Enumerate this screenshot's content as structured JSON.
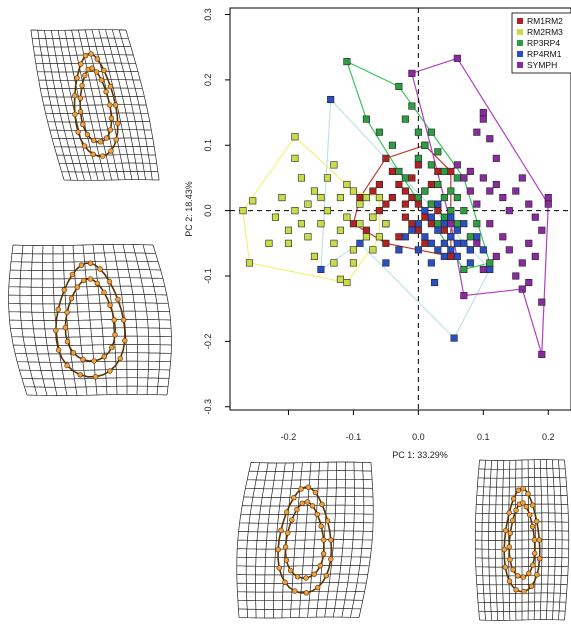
{
  "chart_data": {
    "type": "scatter",
    "xlabel": "PC 1: 33.29%",
    "ylabel": "PC 2: 18.43%",
    "xlim": [
      -0.29,
      0.235
    ],
    "ylim": [
      -0.305,
      0.31
    ],
    "xticks": [
      -0.2,
      -0.1,
      0.0,
      0.1,
      0.2
    ],
    "yticks": [
      -0.3,
      -0.2,
      -0.1,
      0.0,
      0.1,
      0.2,
      0.3
    ],
    "xtick_labels": [
      "-0.2",
      "-0.1",
      "0.0",
      "0.1",
      "0.2"
    ],
    "ytick_labels": [
      "-0.3",
      "-0.2",
      "-0.1",
      "0.0",
      "0.1",
      "0.2",
      "0.3"
    ],
    "reference_lines": {
      "x": 0.0,
      "y": 0.0,
      "style": "dashed"
    },
    "legend_position": "top-right",
    "series": [
      {
        "name": "RM1RM2",
        "color": "#b22222",
        "hull_color": "#c0392b",
        "hull": [
          [
            -0.09,
            0.02
          ],
          [
            -0.05,
            0.08
          ],
          [
            0.01,
            0.1
          ],
          [
            0.05,
            0.06
          ],
          [
            0.05,
            -0.07
          ],
          [
            -0.05,
            -0.05
          ],
          [
            -0.1,
            -0.02
          ]
        ],
        "points": [
          [
            -0.09,
            0.02
          ],
          [
            -0.05,
            0.08
          ],
          [
            0.01,
            0.1
          ],
          [
            0.05,
            0.06
          ],
          [
            0.05,
            -0.07
          ],
          [
            -0.05,
            -0.05
          ],
          [
            -0.1,
            -0.02
          ],
          [
            -0.07,
            0.03
          ],
          [
            -0.06,
            0.0
          ],
          [
            -0.05,
            -0.02
          ],
          [
            -0.04,
            0.02
          ],
          [
            -0.03,
            0.04
          ],
          [
            -0.02,
            -0.01
          ],
          [
            -0.02,
            0.03
          ],
          [
            -0.01,
            0.05
          ],
          [
            0.0,
            0.01
          ],
          [
            0.0,
            -0.03
          ],
          [
            0.01,
            0.03
          ],
          [
            0.02,
            -0.02
          ],
          [
            0.02,
            0.04
          ],
          [
            0.03,
            0.0
          ],
          [
            -0.08,
            -0.03
          ],
          [
            -0.03,
            -0.04
          ],
          [
            0.01,
            -0.05
          ],
          [
            -0.06,
            0.04
          ],
          [
            0.03,
            0.06
          ],
          [
            -0.04,
            0.06
          ],
          [
            0.04,
            -0.03
          ],
          [
            -0.01,
            -0.02
          ],
          [
            0.0,
            0.07
          ],
          [
            -0.07,
            -0.01
          ],
          [
            -0.02,
            0.01
          ],
          [
            0.02,
            0.01
          ],
          [
            -0.05,
            0.01
          ],
          [
            -0.01,
            0.02
          ],
          [
            0.01,
            -0.01
          ]
        ]
      },
      {
        "name": "RM2RM3",
        "color": "#c8dc4a",
        "hull_color": "#f2f27a",
        "hull": [
          [
            -0.19,
            0.113
          ],
          [
            -0.1,
            0.03
          ],
          [
            -0.06,
            0.02
          ],
          [
            -0.06,
            -0.04
          ],
          [
            -0.11,
            -0.11
          ],
          [
            -0.26,
            -0.08
          ],
          [
            -0.27,
            0.0
          ]
        ],
        "points": [
          [
            -0.19,
            0.113
          ],
          [
            -0.1,
            0.03
          ],
          [
            -0.06,
            0.02
          ],
          [
            -0.06,
            -0.04
          ],
          [
            -0.11,
            -0.11
          ],
          [
            -0.26,
            -0.08
          ],
          [
            -0.27,
            0.0
          ],
          [
            -0.255,
            0.015
          ],
          [
            -0.23,
            -0.05
          ],
          [
            -0.22,
            -0.01
          ],
          [
            -0.21,
            0.02
          ],
          [
            -0.2,
            -0.03
          ],
          [
            -0.19,
            0.0
          ],
          [
            -0.18,
            0.05
          ],
          [
            -0.17,
            0.01
          ],
          [
            -0.17,
            -0.04
          ],
          [
            -0.16,
            0.03
          ],
          [
            -0.15,
            -0.02
          ],
          [
            -0.14,
            0.05
          ],
          [
            -0.14,
            0.0
          ],
          [
            -0.13,
            -0.05
          ],
          [
            -0.12,
            0.02
          ],
          [
            -0.12,
            -0.03
          ],
          [
            -0.11,
            0.04
          ],
          [
            -0.11,
            -0.01
          ],
          [
            -0.1,
            -0.06
          ],
          [
            -0.09,
            -0.02
          ],
          [
            -0.09,
            0.01
          ],
          [
            -0.08,
            -0.04
          ],
          [
            -0.08,
            0.02
          ],
          [
            -0.07,
            -0.01
          ],
          [
            -0.16,
            -0.07
          ],
          [
            -0.13,
            -0.08
          ],
          [
            -0.12,
            -0.105
          ],
          [
            -0.2,
            -0.05
          ],
          [
            -0.18,
            -0.02
          ],
          [
            -0.15,
            0.02
          ],
          [
            -0.1,
            -0.08
          ],
          [
            -0.07,
            -0.06
          ],
          [
            -0.19,
            0.08
          ],
          [
            -0.13,
            0.07
          ],
          [
            -0.05,
            -0.02
          ]
        ]
      },
      {
        "name": "RP3RP4",
        "color": "#2e9e44",
        "hull_color": "#3cc458",
        "hull": [
          [
            -0.11,
            0.228
          ],
          [
            -0.08,
            0.14
          ],
          [
            -0.03,
            0.06
          ],
          [
            0.07,
            -0.09
          ],
          [
            0.11,
            -0.08
          ],
          [
            0.07,
            0.05
          ],
          [
            -0.03,
            0.19
          ]
        ],
        "points": [
          [
            -0.11,
            0.228
          ],
          [
            -0.08,
            0.14
          ],
          [
            -0.03,
            0.06
          ],
          [
            0.07,
            -0.09
          ],
          [
            0.11,
            -0.08
          ],
          [
            0.07,
            0.05
          ],
          [
            -0.03,
            0.19
          ],
          [
            -0.02,
            0.14
          ],
          [
            -0.01,
            0.16
          ],
          [
            0.0,
            0.12
          ],
          [
            0.01,
            0.1
          ],
          [
            0.02,
            0.12
          ],
          [
            0.02,
            0.07
          ],
          [
            0.03,
            0.09
          ],
          [
            0.03,
            0.04
          ],
          [
            0.04,
            0.06
          ],
          [
            0.04,
            0.02
          ],
          [
            0.05,
            0.03
          ],
          [
            0.05,
            0.0
          ],
          [
            0.06,
            0.02
          ],
          [
            0.06,
            -0.02
          ],
          [
            0.07,
            0.0
          ],
          [
            0.08,
            -0.04
          ],
          [
            0.08,
            -0.06
          ],
          [
            0.09,
            -0.02
          ],
          [
            -0.02,
            0.05
          ],
          [
            0.0,
            0.08
          ],
          [
            0.01,
            0.03
          ],
          [
            0.02,
            0.01
          ],
          [
            -0.04,
            0.1
          ],
          [
            -0.06,
            0.12
          ],
          [
            0.04,
            -0.01
          ],
          [
            0.06,
            0.05
          ],
          [
            0.03,
            -0.02
          ],
          [
            0.0,
            0.02
          ],
          [
            0.05,
            -0.04
          ]
        ]
      },
      {
        "name": "RP4RM1",
        "color": "#2a4fc4",
        "hull_color": "#bfe3ea",
        "hull": [
          [
            -0.135,
            0.17
          ],
          [
            0.11,
            -0.09
          ],
          [
            0.055,
            -0.195
          ],
          [
            -0.09,
            -0.05
          ],
          [
            -0.15,
            -0.09
          ]
        ],
        "points": [
          [
            -0.135,
            0.17
          ],
          [
            0.11,
            -0.09
          ],
          [
            0.055,
            -0.195
          ],
          [
            -0.09,
            -0.05
          ],
          [
            -0.15,
            -0.09
          ],
          [
            -0.05,
            -0.08
          ],
          [
            0.025,
            -0.11
          ],
          [
            0.0,
            -0.02
          ],
          [
            0.01,
            -0.04
          ],
          [
            0.02,
            -0.01
          ],
          [
            0.02,
            -0.05
          ],
          [
            0.03,
            -0.03
          ],
          [
            0.03,
            -0.06
          ],
          [
            0.04,
            -0.02
          ],
          [
            0.04,
            -0.05
          ],
          [
            0.05,
            -0.01
          ],
          [
            0.05,
            -0.04
          ],
          [
            0.05,
            -0.06
          ],
          [
            0.06,
            -0.03
          ],
          [
            0.06,
            -0.07
          ],
          [
            0.07,
            -0.05
          ],
          [
            0.07,
            -0.02
          ],
          [
            0.08,
            -0.06
          ],
          [
            0.08,
            -0.08
          ],
          [
            0.09,
            -0.04
          ],
          [
            0.1,
            -0.06
          ],
          [
            -0.01,
            -0.03
          ],
          [
            0.0,
            -0.06
          ],
          [
            0.01,
            0.0
          ],
          [
            -0.03,
            -0.06
          ],
          [
            0.03,
            0.01
          ],
          [
            0.06,
            -0.05
          ],
          [
            0.04,
            -0.07
          ],
          [
            0.02,
            -0.08
          ],
          [
            -0.02,
            -0.04
          ]
        ]
      },
      {
        "name": "SYMPH",
        "color": "#8a2aa0",
        "hull_color": "#b040c0",
        "hull": [
          [
            -0.01,
            0.21
          ],
          [
            0.06,
            0.233
          ],
          [
            0.2,
            0.01
          ],
          [
            0.19,
            -0.22
          ],
          [
            0.16,
            -0.12
          ],
          [
            0.07,
            -0.13
          ],
          [
            0.05,
            -0.02
          ]
        ],
        "points": [
          [
            -0.01,
            0.21
          ],
          [
            0.06,
            0.233
          ],
          [
            0.2,
            0.01
          ],
          [
            0.19,
            -0.22
          ],
          [
            0.16,
            -0.12
          ],
          [
            0.07,
            -0.13
          ],
          [
            0.05,
            -0.02
          ],
          [
            0.1,
            0.15
          ],
          [
            0.1,
            0.14
          ],
          [
            0.11,
            0.11
          ],
          [
            0.09,
            0.12
          ],
          [
            0.08,
            0.06
          ],
          [
            0.1,
            0.05
          ],
          [
            0.11,
            0.03
          ],
          [
            0.12,
            0.04
          ],
          [
            0.13,
            0.02
          ],
          [
            0.14,
            0.0
          ],
          [
            0.15,
            0.03
          ],
          [
            0.16,
            0.05
          ],
          [
            0.17,
            0.01
          ],
          [
            0.18,
            -0.01
          ],
          [
            0.19,
            -0.03
          ],
          [
            0.17,
            -0.05
          ],
          [
            0.16,
            -0.08
          ],
          [
            0.18,
            -0.07
          ],
          [
            0.14,
            -0.06
          ],
          [
            0.12,
            -0.07
          ],
          [
            0.13,
            -0.04
          ],
          [
            0.11,
            -0.02
          ],
          [
            0.09,
            -0.05
          ],
          [
            0.1,
            -0.09
          ],
          [
            0.09,
            0.01
          ],
          [
            0.08,
            0.03
          ],
          [
            0.07,
            0.05
          ],
          [
            0.06,
            0.07
          ],
          [
            0.15,
            -0.1
          ],
          [
            0.17,
            -0.11
          ],
          [
            0.19,
            -0.14
          ],
          [
            0.2,
            0.02
          ],
          [
            0.12,
            0.08
          ]
        ]
      }
    ]
  }
}
